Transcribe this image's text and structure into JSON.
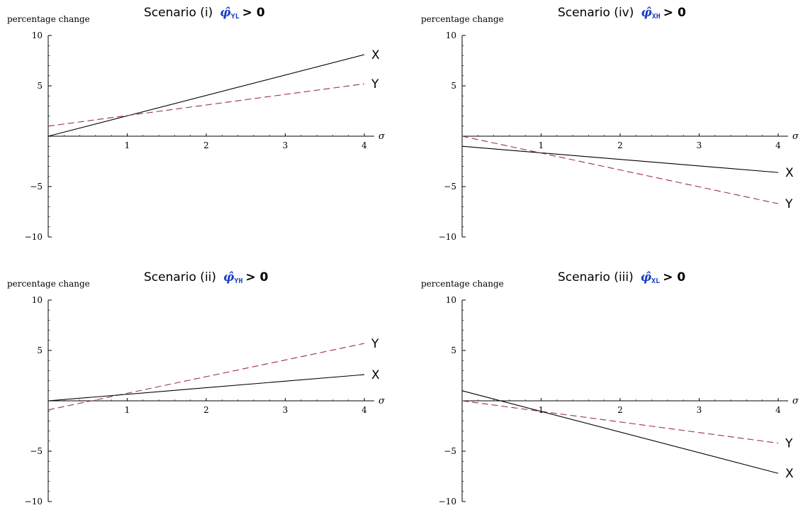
{
  "chart_data": [
    {
      "type": "line",
      "title": "Scenario (i)",
      "title_symbol": "φ̂",
      "title_subscript": "YL",
      "title_relation": "> 0",
      "ylabel": "percentage change",
      "xlabel": "σ",
      "xlim": [
        0,
        4.2
      ],
      "ylim": [
        -10,
        10
      ],
      "xticks": [
        1,
        2,
        3,
        4
      ],
      "yticks": [
        -10,
        -5,
        5,
        10
      ],
      "grid": false,
      "colors": {
        "X": "#000000",
        "Y": "#9b2f52"
      },
      "series": [
        {
          "name": "X",
          "style": "solid",
          "x": [
            0,
            4
          ],
          "y": [
            0,
            8.1
          ]
        },
        {
          "name": "Y",
          "style": "dashed",
          "x": [
            0,
            4
          ],
          "y": [
            1,
            5.2
          ]
        }
      ]
    },
    {
      "type": "line",
      "title": "Scenario (iv)",
      "title_symbol": "φ̂",
      "title_subscript": "XH",
      "title_relation": "> 0",
      "ylabel": "percentage change",
      "xlabel": "σ",
      "xlim": [
        0,
        4.2
      ],
      "ylim": [
        -10,
        10
      ],
      "xticks": [
        1,
        2,
        3,
        4
      ],
      "yticks": [
        -10,
        -5,
        5,
        10
      ],
      "grid": false,
      "colors": {
        "X": "#000000",
        "Y": "#9b2f52"
      },
      "series": [
        {
          "name": "X",
          "style": "solid",
          "x": [
            0,
            4
          ],
          "y": [
            -1,
            -3.6
          ]
        },
        {
          "name": "Y",
          "style": "dashed",
          "x": [
            0,
            4
          ],
          "y": [
            0,
            -6.7
          ]
        }
      ]
    },
    {
      "type": "line",
      "title": "Scenario (ii)",
      "title_symbol": "φ̂",
      "title_subscript": "YH",
      "title_relation": "> 0",
      "ylabel": "percentage change",
      "xlabel": "σ",
      "xlim": [
        0,
        4.2
      ],
      "ylim": [
        -10,
        10
      ],
      "xticks": [
        1,
        2,
        3,
        4
      ],
      "yticks": [
        -10,
        -5,
        5,
        10
      ],
      "grid": false,
      "colors": {
        "X": "#000000",
        "Y": "#9b2f52"
      },
      "series": [
        {
          "name": "Y",
          "style": "dashed",
          "x": [
            0,
            4
          ],
          "y": [
            -0.9,
            5.7
          ]
        },
        {
          "name": "X",
          "style": "solid",
          "x": [
            0,
            4
          ],
          "y": [
            0,
            2.6
          ]
        }
      ]
    },
    {
      "type": "line",
      "title": "Scenario (iii)",
      "title_symbol": "φ̂",
      "title_subscript": "XL",
      "title_relation": "> 0",
      "ylabel": "percentage change",
      "xlabel": "σ",
      "xlim": [
        0,
        4.2
      ],
      "ylim": [
        -10,
        10
      ],
      "xticks": [
        1,
        2,
        3,
        4
      ],
      "yticks": [
        -10,
        -5,
        5,
        10
      ],
      "grid": false,
      "colors": {
        "X": "#000000",
        "Y": "#9b2f52"
      },
      "series": [
        {
          "name": "Y",
          "style": "dashed",
          "x": [
            0,
            4
          ],
          "y": [
            0,
            -4.2
          ]
        },
        {
          "name": "X",
          "style": "solid",
          "x": [
            0,
            4
          ],
          "y": [
            1,
            -7.2
          ]
        }
      ]
    }
  ]
}
